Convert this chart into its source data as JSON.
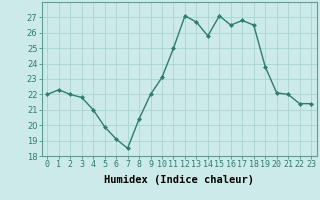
{
  "x": [
    0,
    1,
    2,
    3,
    4,
    5,
    6,
    7,
    8,
    9,
    10,
    11,
    12,
    13,
    14,
    15,
    16,
    17,
    18,
    19,
    20,
    21,
    22,
    23
  ],
  "y": [
    22.0,
    22.3,
    22.0,
    21.8,
    21.0,
    19.9,
    19.1,
    18.5,
    20.4,
    22.0,
    23.1,
    25.0,
    27.1,
    26.7,
    25.8,
    27.1,
    26.5,
    26.8,
    26.5,
    23.8,
    22.1,
    22.0,
    21.4,
    21.4
  ],
  "line_color": "#2e7d6e",
  "marker": "D",
  "marker_size": 2,
  "bg_color": "#cceae8",
  "grid_color": "#aad4d0",
  "xlabel": "Humidex (Indice chaleur)",
  "ylim": [
    18,
    28
  ],
  "yticks": [
    18,
    19,
    20,
    21,
    22,
    23,
    24,
    25,
    26,
    27
  ],
  "xlim": [
    -0.5,
    23.5
  ],
  "xtick_labels": [
    "0",
    "1",
    "2",
    "3",
    "4",
    "5",
    "6",
    "7",
    "8",
    "9",
    "10",
    "11",
    "12",
    "13",
    "14",
    "15",
    "16",
    "17",
    "18",
    "19",
    "20",
    "21",
    "22",
    "23"
  ],
  "tick_fontsize": 6,
  "xlabel_fontsize": 7.5,
  "line_width": 1.0
}
